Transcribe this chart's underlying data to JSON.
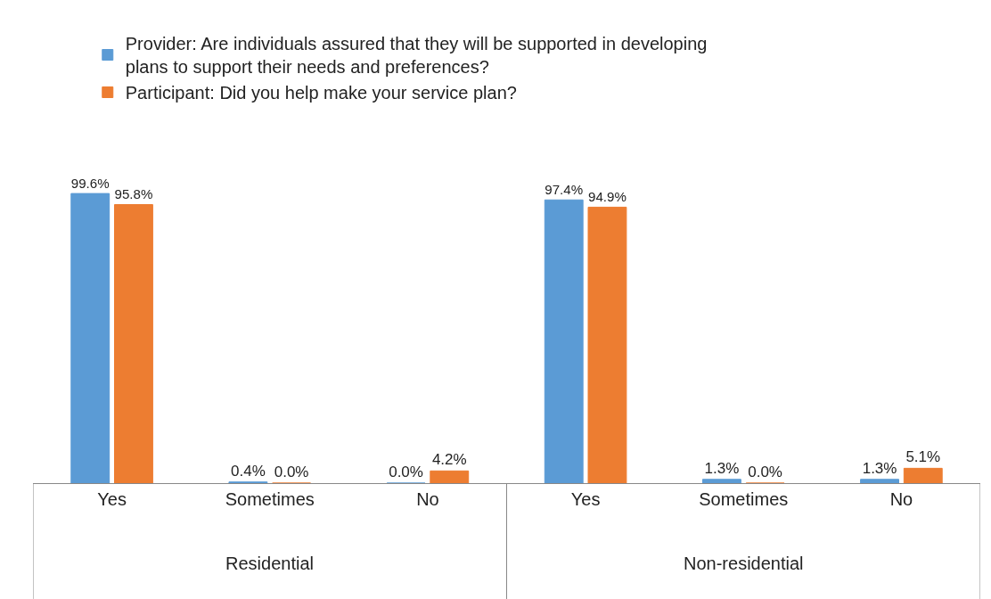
{
  "chart_data": {
    "type": "bar",
    "categories": [
      "Yes",
      "Sometimes",
      "No",
      "Yes",
      "Sometimes",
      "No"
    ],
    "series": [
      {
        "name": "Provider: Are individuals assured that they will be supported in developing plans to support their needs and preferences?",
        "color": "#5b9bd5",
        "values": [
          99.6,
          0.4,
          0.0,
          97.4,
          1.3,
          1.3
        ],
        "value_labels": [
          "99.6%",
          "0.4%",
          "0.0%",
          "97.4%",
          "1.3%",
          "1.3%"
        ]
      },
      {
        "name": "Participant: Did you help make your service plan?",
        "color": "#ed7d31",
        "values": [
          95.8,
          0.0,
          4.2,
          94.9,
          0.0,
          5.1
        ],
        "value_labels": [
          "95.8%",
          "0.0%",
          "4.2%",
          "94.9%",
          "0.0%",
          "5.1%"
        ]
      }
    ],
    "annotations": [
      "Residential",
      "Non-residential"
    ],
    "legend": "top"
  }
}
